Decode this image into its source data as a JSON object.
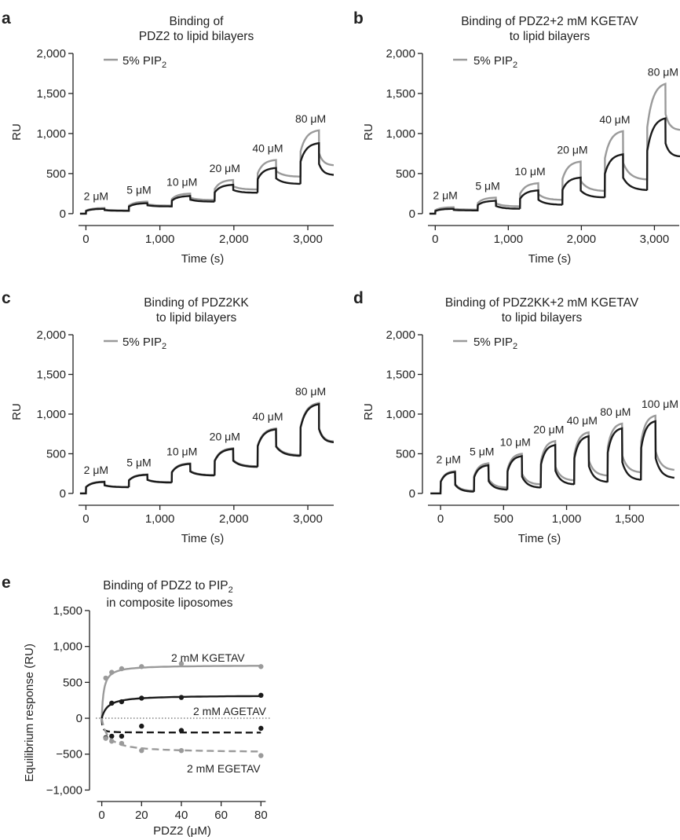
{
  "chart_data": [
    {
      "id": "a",
      "type": "line",
      "panel_label": "a",
      "title_lines": [
        "Binding of",
        "PDZ2 to lipid bilayers"
      ],
      "xlabel": "Time (s)",
      "ylabel": "RU",
      "xlim": [
        -100,
        3350
      ],
      "ylim": [
        -60,
        2000
      ],
      "xticks": [
        0,
        1000,
        2000,
        3000
      ],
      "xtick_labels": [
        "0",
        "1,000",
        "2,000",
        "3,000"
      ],
      "yticks": [
        0,
        500,
        1000,
        1500,
        2000
      ],
      "ytick_labels": [
        "0",
        "500",
        "1,000",
        "1,500",
        "2,000"
      ],
      "legend": {
        "label_main": "5% PIP",
        "label_sub": "2",
        "color": "#9a9a9a",
        "placement": "top-left"
      },
      "injection_period_s": 580,
      "injection_duration_s": 250,
      "injections": [
        {
          "label": "2 μM",
          "start": 0,
          "grey_peak": 70,
          "black_peak": 60,
          "grey_after": 40,
          "black_after": 35
        },
        {
          "label": "5 μM",
          "start": 580,
          "grey_peak": 150,
          "black_peak": 130,
          "grey_after": 100,
          "black_after": 90
        },
        {
          "label": "10 μM",
          "start": 1160,
          "grey_peak": 250,
          "black_peak": 220,
          "grey_after": 170,
          "black_after": 150
        },
        {
          "label": "20 μM",
          "start": 1740,
          "grey_peak": 420,
          "black_peak": 360,
          "grey_after": 300,
          "black_after": 260
        },
        {
          "label": "40 μM",
          "start": 2320,
          "grey_peak": 670,
          "black_peak": 570,
          "grey_after": 460,
          "black_after": 370
        },
        {
          "label": "80 μM",
          "start": 2900,
          "grey_peak": 1040,
          "black_peak": 880,
          "grey_after": 600,
          "black_after": 480
        }
      ],
      "series": [
        {
          "name": "5% PIP2",
          "color": "#9a9a9a"
        },
        {
          "color": "#1a1a1a"
        }
      ]
    },
    {
      "id": "b",
      "type": "line",
      "panel_label": "b",
      "title_lines": [
        "Binding of PDZ2+2 mM KGETAV",
        "to lipid bilayers"
      ],
      "xlabel": "Time (s)",
      "ylabel": "RU",
      "xlim": [
        -100,
        3350
      ],
      "ylim": [
        -60,
        2000
      ],
      "xticks": [
        0,
        1000,
        2000,
        3000
      ],
      "xtick_labels": [
        "0",
        "1,000",
        "2,000",
        "3,000"
      ],
      "yticks": [
        0,
        500,
        1000,
        1500,
        2000
      ],
      "ytick_labels": [
        "0",
        "500",
        "1,000",
        "1,500",
        "2,000"
      ],
      "legend": {
        "label_main": "5% PIP",
        "label_sub": "2",
        "color": "#9a9a9a",
        "placement": "top-left"
      },
      "injection_period_s": 580,
      "injection_duration_s": 250,
      "injections": [
        {
          "label": "2 μM",
          "start": 0,
          "grey_peak": 80,
          "black_peak": 60,
          "grey_after": 50,
          "black_after": 40
        },
        {
          "label": "5 μM",
          "start": 580,
          "grey_peak": 200,
          "black_peak": 160,
          "grey_after": 90,
          "black_after": 60
        },
        {
          "label": "10 μM",
          "start": 1160,
          "grey_peak": 380,
          "black_peak": 290,
          "grey_after": 170,
          "black_after": 110
        },
        {
          "label": "20 μM",
          "start": 1740,
          "grey_peak": 650,
          "black_peak": 450,
          "grey_after": 280,
          "black_after": 200
        },
        {
          "label": "40 μM",
          "start": 2320,
          "grey_peak": 1030,
          "black_peak": 740,
          "grey_after": 420,
          "black_after": 290
        },
        {
          "label": "80 μM",
          "start": 2900,
          "grey_peak": 1620,
          "black_peak": 1190,
          "grey_after": 1040,
          "black_after": 710
        }
      ],
      "series": [
        {
          "name": "5% PIP2",
          "color": "#9a9a9a"
        },
        {
          "color": "#1a1a1a"
        }
      ]
    },
    {
      "id": "c",
      "type": "line",
      "panel_label": "c",
      "title_lines": [
        "Binding of PDZ2KK",
        "to lipid bilayers"
      ],
      "xlabel": "Time (s)",
      "ylabel": "RU",
      "xlim": [
        -100,
        3350
      ],
      "ylim": [
        -60,
        2000
      ],
      "xticks": [
        0,
        1000,
        2000,
        3000
      ],
      "xtick_labels": [
        "0",
        "1,000",
        "2,000",
        "3,000"
      ],
      "yticks": [
        0,
        500,
        1000,
        1500,
        2000
      ],
      "ytick_labels": [
        "0",
        "500",
        "1,000",
        "1,500",
        "2,000"
      ],
      "legend": {
        "label_main": "5% PIP",
        "label_sub": "2",
        "color": "#9a9a9a",
        "placement": "top-left"
      },
      "injection_period_s": 580,
      "injection_duration_s": 250,
      "injections": [
        {
          "label": "2 μM",
          "start": 0,
          "grey_peak": 150,
          "black_peak": 145,
          "grey_after": 80,
          "black_after": 78
        },
        {
          "label": "5 μM",
          "start": 580,
          "grey_peak": 240,
          "black_peak": 235,
          "grey_after": 140,
          "black_after": 136
        },
        {
          "label": "10 μM",
          "start": 1160,
          "grey_peak": 380,
          "black_peak": 372,
          "grey_after": 230,
          "black_after": 225
        },
        {
          "label": "20 μM",
          "start": 1740,
          "grey_peak": 570,
          "black_peak": 560,
          "grey_after": 340,
          "black_after": 332
        },
        {
          "label": "40 μM",
          "start": 2320,
          "grey_peak": 820,
          "black_peak": 808,
          "grey_after": 480,
          "black_after": 470
        },
        {
          "label": "80 μM",
          "start": 2900,
          "grey_peak": 1140,
          "black_peak": 1125,
          "grey_after": 650,
          "black_after": 640
        }
      ],
      "series": [
        {
          "name": "5% PIP2",
          "color": "#9a9a9a"
        },
        {
          "color": "#1a1a1a"
        }
      ]
    },
    {
      "id": "d",
      "type": "line",
      "panel_label": "d",
      "title_lines": [
        "Binding of PDZ2KK+2 mM KGETAV",
        "to lipid bilayers"
      ],
      "xlabel": "Time (s)",
      "ylabel": "RU",
      "xlim": [
        -100,
        1900
      ],
      "ylim": [
        -60,
        2000
      ],
      "xticks": [
        0,
        500,
        1000,
        1500
      ],
      "xtick_labels": [
        "0",
        "500",
        "1,000",
        "1,500"
      ],
      "yticks": [
        0,
        500,
        1000,
        1500,
        2000
      ],
      "ytick_labels": [
        "0",
        "500",
        "1,000",
        "1,500",
        "2,000"
      ],
      "legend": {
        "label_main": "5% PIP",
        "label_sub": "2",
        "color": "#9a9a9a",
        "placement": "top-left"
      },
      "injection_period_s": 265,
      "injection_duration_s": 115,
      "injections": [
        {
          "label": "2 μM",
          "start": 0,
          "grey_peak": 280,
          "black_peak": 270,
          "grey_after": 30,
          "black_after": 20
        },
        {
          "label": "5 μM",
          "start": 265,
          "grey_peak": 380,
          "black_peak": 355,
          "grey_after": 70,
          "black_after": 45
        },
        {
          "label": "10 μM",
          "start": 530,
          "grey_peak": 500,
          "black_peak": 470,
          "grey_after": 110,
          "black_after": 70
        },
        {
          "label": "20 μM",
          "start": 795,
          "grey_peak": 660,
          "black_peak": 610,
          "grey_after": 160,
          "black_after": 110
        },
        {
          "label": "40 μM",
          "start": 1060,
          "grey_peak": 770,
          "black_peak": 720,
          "grey_after": 220,
          "black_after": 140
        },
        {
          "label": "80 μM",
          "start": 1325,
          "grey_peak": 880,
          "black_peak": 820,
          "grey_after": 260,
          "black_after": 165
        },
        {
          "label": "100 μM",
          "start": 1590,
          "grey_peak": 980,
          "black_peak": 910,
          "grey_after": 290,
          "black_after": 190
        }
      ],
      "series": [
        {
          "name": "5% PIP2",
          "color": "#9a9a9a"
        },
        {
          "color": "#1a1a1a"
        }
      ]
    },
    {
      "id": "e",
      "type": "scatter",
      "panel_label": "e",
      "title_lines": [
        "Binding of PDZ2 to PIP",
        "in composite liposomes"
      ],
      "title_subscript": "2",
      "xlabel": "PDZ2 (μM)",
      "ylabel": "Equilibrium response (RU)",
      "xlim": [
        -3,
        85
      ],
      "ylim": [
        -1050,
        1500
      ],
      "xticks": [
        0,
        20,
        40,
        60,
        80
      ],
      "xtick_labels": [
        "0",
        "20",
        "40",
        "60",
        "80"
      ],
      "yticks": [
        -1000,
        -500,
        0,
        500,
        1000,
        1500
      ],
      "ytick_labels": [
        "−1,000",
        "−500",
        "0",
        "500",
        "1,000",
        "1,500"
      ],
      "zero_line": true,
      "series": [
        {
          "name": "2 mM KGETAV",
          "color": "#9a9a9a",
          "dashed": false,
          "x": [
            2,
            5,
            10,
            20,
            40,
            80
          ],
          "y": [
            560,
            640,
            690,
            720,
            760,
            720
          ],
          "fit_max": 740,
          "fit_kd": 1.0
        },
        {
          "color": "#1a1a1a",
          "dashed": false,
          "x": [
            5,
            10,
            20,
            40,
            80
          ],
          "y": [
            210,
            230,
            280,
            290,
            320
          ],
          "fit_max": 320,
          "fit_kd": 3.0
        },
        {
          "name": "2 mM AGETAV",
          "color": "#1a1a1a",
          "dashed": true,
          "x": [
            2,
            5,
            10,
            20,
            40,
            80
          ],
          "y": [
            -270,
            -250,
            -250,
            -110,
            -170,
            -140
          ],
          "fit_max": -200,
          "fit_kd": 0.3
        },
        {
          "name": "2 mM EGETAV",
          "color": "#9a9a9a",
          "dashed": true,
          "x": [
            2,
            5,
            10,
            20,
            40,
            80
          ],
          "y": [
            -280,
            -320,
            -350,
            -450,
            -450,
            -520
          ],
          "fit_max": -480,
          "fit_kd": 3.0
        }
      ]
    }
  ]
}
